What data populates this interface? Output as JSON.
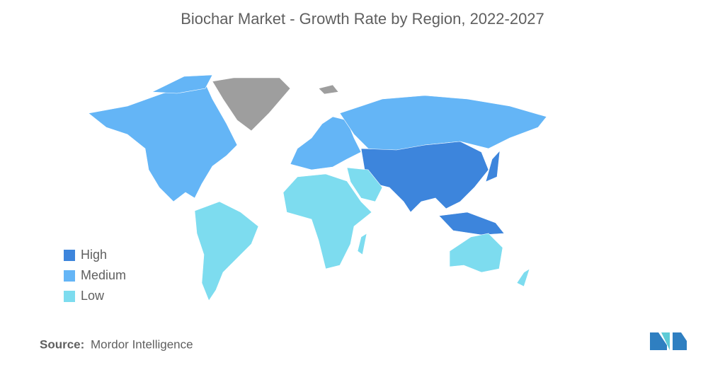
{
  "title": "Biochar Market  - Growth Rate by Region, 2022-2027",
  "legend": [
    {
      "label": "High",
      "color": "#3d85dc"
    },
    {
      "label": "Medium",
      "color": "#64b5f6"
    },
    {
      "label": "Low",
      "color": "#7ddcef"
    }
  ],
  "source": {
    "label": "Source:",
    "text": "Mordor Intelligence"
  }
}
